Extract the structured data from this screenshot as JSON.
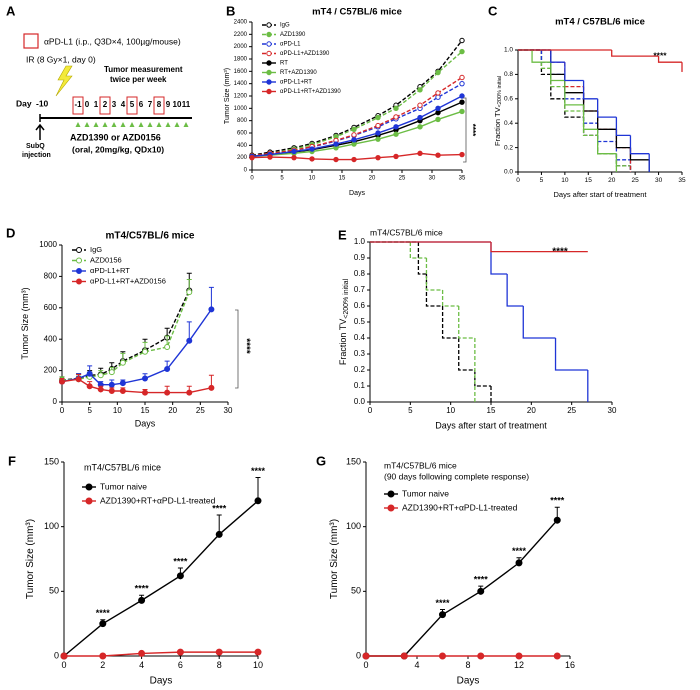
{
  "schematic": {
    "panel": "A",
    "treatment": "αPD-L1 (i.p., Q3D×4, 100µg/mouse)",
    "radiation": "IR (8 Gy×1, day 0)",
    "measurement": [
      "Tumor measurement",
      "twice per week"
    ],
    "day_label": "Day",
    "start_day": "-10",
    "days": [
      "-1",
      "0",
      "1",
      "2",
      "3",
      "4",
      "5",
      "6",
      "7",
      "8",
      "9",
      "10",
      "11"
    ],
    "injection": [
      "SubQ",
      "injection"
    ],
    "drug": "AZD1390 or AZD0156",
    "drug_dose": "(oral, 20mg/kg, QDx10)"
  },
  "chart_data": [
    {
      "type": "line",
      "panel": "B",
      "title": "mT4 / C57BL/6 mice",
      "xlabel": "Days",
      "ylabel": "Tumor Size (mm³)",
      "xlim": [
        0,
        35
      ],
      "xticks": [
        0,
        5,
        10,
        15,
        20,
        25,
        30,
        35
      ],
      "ylim": [
        0,
        2400
      ],
      "yticks": [
        0,
        200,
        400,
        600,
        800,
        1000,
        1200,
        1400,
        1600,
        1800,
        2000,
        2200,
        2400
      ],
      "legend": "upper left",
      "annotation": "****",
      "series": [
        {
          "name": "IgG",
          "color": "#000000",
          "dash": true,
          "marker": "open",
          "x": [
            0,
            3,
            7,
            10,
            14,
            17,
            21,
            24,
            28,
            31,
            35
          ],
          "values": [
            240,
            290,
            360,
            430,
            560,
            690,
            880,
            1050,
            1350,
            1600,
            2100
          ]
        },
        {
          "name": "AZD1390",
          "color": "#6cbd45",
          "dash": true,
          "marker": "filled",
          "x": [
            0,
            3,
            7,
            10,
            14,
            17,
            21,
            24,
            28,
            31,
            35
          ],
          "values": [
            230,
            270,
            340,
            410,
            540,
            660,
            850,
            1000,
            1300,
            1580,
            1920
          ]
        },
        {
          "name": "αPD-L1",
          "color": "#1f35d6",
          "dash": true,
          "marker": "open",
          "x": [
            0,
            3,
            7,
            10,
            14,
            17,
            21,
            24,
            28,
            31,
            35
          ],
          "values": [
            220,
            260,
            320,
            370,
            470,
            560,
            700,
            830,
            1000,
            1180,
            1400
          ]
        },
        {
          "name": "αPD-L1+AZD1390",
          "color": "#d62728",
          "dash": true,
          "marker": "open",
          "x": [
            0,
            3,
            7,
            10,
            14,
            17,
            21,
            24,
            28,
            31,
            35
          ],
          "values": [
            230,
            270,
            320,
            380,
            480,
            570,
            720,
            860,
            1050,
            1250,
            1500
          ]
        },
        {
          "name": "RT",
          "color": "#000000",
          "dash": false,
          "marker": "filled",
          "x": [
            0,
            3,
            7,
            10,
            14,
            17,
            21,
            24,
            28,
            31,
            35
          ],
          "values": [
            220,
            250,
            290,
            330,
            400,
            460,
            560,
            650,
            800,
            930,
            1100
          ]
        },
        {
          "name": "RT+AZD1390",
          "color": "#6cbd45",
          "dash": false,
          "marker": "filled",
          "x": [
            0,
            3,
            7,
            10,
            14,
            17,
            21,
            24,
            28,
            31,
            35
          ],
          "values": [
            220,
            240,
            270,
            300,
            360,
            420,
            500,
            580,
            700,
            820,
            950
          ]
        },
        {
          "name": "αPD-L1+RT",
          "color": "#1f35d6",
          "dash": false,
          "marker": "filled",
          "x": [
            0,
            3,
            7,
            10,
            14,
            17,
            21,
            24,
            28,
            31,
            35
          ],
          "values": [
            220,
            250,
            300,
            340,
            420,
            490,
            600,
            700,
            850,
            1000,
            1200
          ]
        },
        {
          "name": "αPD-L1+RT+AZD1390",
          "color": "#d62728",
          "dash": false,
          "marker": "filled",
          "x": [
            0,
            3,
            7,
            10,
            14,
            17,
            21,
            24,
            28,
            31,
            35
          ],
          "values": [
            200,
            210,
            200,
            180,
            170,
            170,
            200,
            220,
            270,
            240,
            250
          ]
        }
      ]
    },
    {
      "type": "step",
      "panel": "C",
      "title": "mT4 / C57BL/6 mice",
      "xlabel": "Days after start of treatment",
      "ylabel": "Fraction TV",
      "ylabel_sub": "<200% initial",
      "xlim": [
        0,
        35
      ],
      "xticks": [
        0,
        5,
        10,
        15,
        20,
        25,
        30,
        35
      ],
      "ylim": [
        0,
        1
      ],
      "yticks": [
        {
          "value": 0,
          "label": "0.0"
        },
        {
          "value": 0.2,
          "label": "0.2"
        },
        {
          "value": 0.4,
          "label": "0.4"
        },
        {
          "value": 0.6,
          "label": "0.6"
        },
        {
          "value": 0.8,
          "label": "0.8"
        },
        {
          "value": 1,
          "label": "1.0"
        }
      ],
      "annotation": "****",
      "series": [
        {
          "color": "#000000",
          "dash": true,
          "x": [
            0,
            5,
            7,
            10,
            14,
            17,
            21,
            24
          ],
          "values": [
            1,
            0.8,
            0.6,
            0.45,
            0.3,
            0.15,
            0.05,
            0
          ]
        },
        {
          "color": "#6cbd45",
          "dash": true,
          "x": [
            0,
            5,
            7,
            10,
            14,
            17,
            21,
            24
          ],
          "values": [
            1,
            0.85,
            0.7,
            0.5,
            0.3,
            0.15,
            0.05,
            0
          ]
        },
        {
          "color": "#1f35d6",
          "dash": true,
          "x": [
            0,
            5,
            7,
            10,
            14,
            17,
            21,
            24
          ],
          "values": [
            1,
            0.9,
            0.8,
            0.6,
            0.4,
            0.25,
            0.1,
            0
          ]
        },
        {
          "color": "#d62728",
          "dash": true,
          "x": [
            0,
            7,
            10,
            14,
            17,
            21,
            24
          ],
          "values": [
            1,
            0.9,
            0.7,
            0.5,
            0.35,
            0.2,
            0
          ]
        },
        {
          "color": "#000000",
          "dash": false,
          "x": [
            0,
            7,
            10,
            14,
            17,
            21,
            24,
            28
          ],
          "values": [
            1,
            0.8,
            0.65,
            0.5,
            0.35,
            0.2,
            0.1,
            0
          ]
        },
        {
          "color": "#6cbd45",
          "dash": false,
          "x": [
            0,
            3,
            7,
            10,
            14,
            17,
            21
          ],
          "values": [
            1,
            0.9,
            0.75,
            0.55,
            0.35,
            0.15,
            0
          ]
        },
        {
          "color": "#1f35d6",
          "dash": false,
          "x": [
            0,
            7,
            10,
            14,
            17,
            21,
            24,
            28
          ],
          "values": [
            1,
            0.9,
            0.75,
            0.6,
            0.45,
            0.3,
            0.15,
            0
          ]
        },
        {
          "color": "#d62728",
          "dash": false,
          "x": [
            0,
            20,
            30,
            35
          ],
          "values": [
            1,
            0.95,
            0.9,
            0.82
          ]
        }
      ]
    },
    {
      "type": "line",
      "panel": "D",
      "title": "mT4/C57BL/6 mice",
      "xlabel": "Days",
      "ylabel": "Tumor Size (mm³)",
      "xlim": [
        0,
        30
      ],
      "xticks": [
        0,
        5,
        10,
        15,
        20,
        25,
        30
      ],
      "ylim": [
        0,
        1000
      ],
      "yticks": [
        0,
        200,
        400,
        600,
        800,
        1000
      ],
      "legend": "upper left",
      "annotation": "****",
      "series": [
        {
          "name": "IgG",
          "color": "#000000",
          "dash": true,
          "marker": "open",
          "x": [
            0,
            3,
            5,
            7,
            9,
            11,
            15,
            19,
            23
          ],
          "values": [
            140,
            150,
            170,
            175,
            210,
            260,
            330,
            410,
            710
          ],
          "errors": [
            20,
            30,
            30,
            40,
            40,
            60,
            70,
            60,
            110
          ]
        },
        {
          "name": "AZD0156",
          "color": "#6cbd45",
          "dash": true,
          "marker": "open",
          "x": [
            0,
            3,
            5,
            7,
            9,
            11,
            15,
            19,
            23
          ],
          "values": [
            140,
            145,
            160,
            170,
            190,
            250,
            320,
            350,
            700
          ],
          "errors": [
            20,
            20,
            30,
            30,
            30,
            60,
            60,
            70,
            80
          ]
        },
        {
          "name": "αPD-L1+RT",
          "color": "#1f35d6",
          "dash": false,
          "marker": "filled",
          "x": [
            0,
            3,
            5,
            7,
            9,
            11,
            15,
            19,
            23,
            27
          ],
          "values": [
            130,
            150,
            180,
            110,
            110,
            120,
            150,
            210,
            390,
            590
          ],
          "errors": [
            20,
            30,
            50,
            20,
            30,
            20,
            30,
            50,
            120,
            140
          ]
        },
        {
          "name": "αPD-L1+RT+AZD0156",
          "color": "#d62728",
          "dash": false,
          "marker": "filled",
          "x": [
            0,
            3,
            5,
            7,
            9,
            11,
            15,
            19,
            23,
            27
          ],
          "values": [
            130,
            145,
            100,
            80,
            70,
            70,
            60,
            60,
            60,
            90
          ],
          "errors": [
            20,
            30,
            30,
            20,
            20,
            20,
            20,
            40,
            40,
            80
          ]
        }
      ]
    },
    {
      "type": "step",
      "panel": "E",
      "title": "mT4/C57BL/6 mice",
      "xlabel": "Days after start of treatment",
      "ylabel": "Fraction TV",
      "ylabel_sub": "<200% initial",
      "xlim": [
        0,
        30
      ],
      "xticks": [
        0,
        5,
        10,
        15,
        20,
        25,
        30
      ],
      "ylim": [
        0,
        1
      ],
      "yticks": [
        {
          "value": 0,
          "label": "0.0"
        },
        {
          "value": 0.1,
          "label": "0.1"
        },
        {
          "value": 0.2,
          "label": "0.2"
        },
        {
          "value": 0.3,
          "label": "0.3"
        },
        {
          "value": 0.4,
          "label": "0.4"
        },
        {
          "value": 0.5,
          "label": "0.5"
        },
        {
          "value": 0.6,
          "label": "0.6"
        },
        {
          "value": 0.7,
          "label": "0.7"
        },
        {
          "value": 0.8,
          "label": "0.8"
        },
        {
          "value": 0.9,
          "label": "0.9"
        },
        {
          "value": 1,
          "label": "1.0"
        }
      ],
      "annotation": "****",
      "series": [
        {
          "color": "#000000",
          "dash": true,
          "x": [
            0,
            6,
            7,
            9,
            11,
            13,
            15
          ],
          "values": [
            1,
            0.8,
            0.6,
            0.4,
            0.2,
            0.1,
            0
          ]
        },
        {
          "color": "#6cbd45",
          "dash": true,
          "x": [
            0,
            5,
            7,
            9,
            11,
            13
          ],
          "values": [
            1,
            0.9,
            0.7,
            0.6,
            0.4,
            0
          ]
        },
        {
          "color": "#1f35d6",
          "dash": false,
          "x": [
            0,
            15,
            17,
            19,
            23,
            27
          ],
          "values": [
            1,
            0.8,
            0.6,
            0.4,
            0.2,
            0
          ]
        },
        {
          "color": "#d62728",
          "dash": false,
          "x": [
            0,
            15,
            27
          ],
          "values": [
            1,
            0.94,
            0.94
          ]
        }
      ]
    },
    {
      "type": "line",
      "panel": "F",
      "title": "mT4/C57BL/6 mice",
      "xlabel": "Days",
      "ylabel": "Tumor Size (mm³)",
      "xlim": [
        0,
        10
      ],
      "xticks": [
        0,
        2,
        4,
        6,
        8,
        10
      ],
      "ylim": [
        0,
        150
      ],
      "yticks": [
        0,
        50,
        100,
        150
      ],
      "legend": "upper left",
      "series": [
        {
          "name": "Tumor naive",
          "color": "#000000",
          "dash": false,
          "marker": "filled",
          "x": [
            0,
            2,
            4,
            6,
            8,
            10
          ],
          "values": [
            0,
            25,
            43,
            62,
            94,
            120
          ],
          "errors": [
            0,
            3,
            4,
            6,
            15,
            18
          ]
        },
        {
          "name": "AZD1390+RT+αPD-L1-treated",
          "color": "#d62728",
          "dash": false,
          "marker": "filled",
          "x": [
            0,
            2,
            4,
            6,
            8,
            10
          ],
          "values": [
            0,
            0,
            2,
            3,
            3,
            3
          ]
        }
      ],
      "annotations": [
        {
          "text": "****",
          "x": 2
        },
        {
          "text": "****",
          "x": 4
        },
        {
          "text": "****",
          "x": 6
        },
        {
          "text": "****",
          "x": 8
        },
        {
          "text": "****",
          "x": 10
        }
      ]
    },
    {
      "type": "line",
      "panel": "G",
      "title": "mT4/C57BL/6 mice",
      "subtitle": "(90 days following complete response)",
      "xlabel": "Days",
      "ylabel": "Tumor Size (mm³)",
      "xlim": [
        0,
        16
      ],
      "xticks": [
        0,
        4,
        8,
        12,
        16
      ],
      "ylim": [
        0,
        150
      ],
      "yticks": [
        0,
        50,
        100,
        150
      ],
      "legend": "upper left",
      "series": [
        {
          "name": "Tumor naive",
          "color": "#000000",
          "dash": false,
          "marker": "filled",
          "x": [
            0,
            3,
            6,
            9,
            12,
            15
          ],
          "values": [
            0,
            0,
            32,
            50,
            72,
            105
          ],
          "errors": [
            0,
            0,
            4,
            4,
            4,
            10
          ]
        },
        {
          "name": "AZD1390+RT+αPD-L1-treated",
          "color": "#d62728",
          "dash": false,
          "marker": "filled",
          "x": [
            0,
            3,
            6,
            9,
            12,
            15
          ],
          "values": [
            0,
            0,
            0,
            0,
            0,
            0
          ]
        }
      ],
      "annotations": [
        {
          "text": "****",
          "x": 6
        },
        {
          "text": "****",
          "x": 9
        },
        {
          "text": "****",
          "x": 12
        },
        {
          "text": "****",
          "x": 15
        }
      ]
    }
  ]
}
